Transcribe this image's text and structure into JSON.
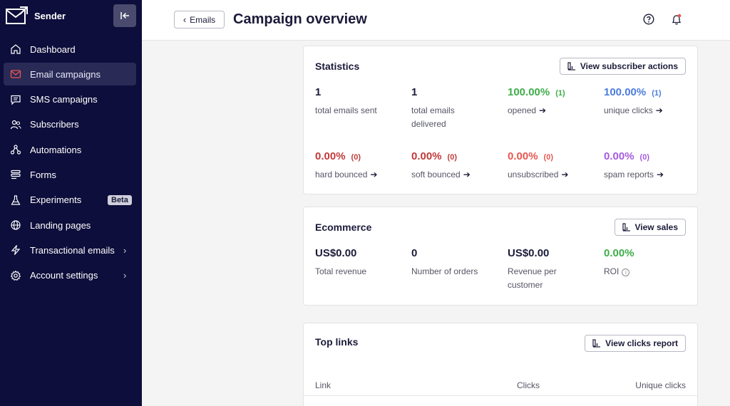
{
  "sidebar": {
    "brand": "Sender",
    "items": [
      {
        "label": "Dashboard",
        "icon": "home-icon",
        "active": false
      },
      {
        "label": "Email campaigns",
        "icon": "mail-icon",
        "active": true
      },
      {
        "label": "SMS campaigns",
        "icon": "message-icon",
        "active": false
      },
      {
        "label": "Subscribers",
        "icon": "users-icon",
        "active": false
      },
      {
        "label": "Automations",
        "icon": "automation-icon",
        "active": false
      },
      {
        "label": "Forms",
        "icon": "forms-icon",
        "active": false
      },
      {
        "label": "Experiments",
        "icon": "flask-icon",
        "active": false,
        "badge": "Beta"
      },
      {
        "label": "Landing pages",
        "icon": "globe-icon",
        "active": false
      },
      {
        "label": "Transactional emails",
        "icon": "lightning-icon",
        "active": false,
        "chevron": true
      },
      {
        "label": "Account settings",
        "icon": "gear-icon",
        "active": false,
        "chevron": true
      }
    ]
  },
  "header": {
    "back_label": "Emails",
    "title": "Campaign overview"
  },
  "statistics": {
    "title": "Statistics",
    "button": "View subscriber actions",
    "row1": [
      {
        "value": "1",
        "count": "",
        "label": "total emails sent",
        "arrow": false,
        "color": "#1b1b3a"
      },
      {
        "value": "1",
        "count": "",
        "label": "total emails delivered",
        "arrow": false,
        "color": "#1b1b3a"
      },
      {
        "value": "100.00%",
        "count": "(1)",
        "label": "opened",
        "arrow": true,
        "color": "#3fae4a"
      },
      {
        "value": "100.00%",
        "count": "(1)",
        "label": "unique clicks",
        "arrow": true,
        "color": "#4b7ddc"
      }
    ],
    "row2": [
      {
        "value": "0.00%",
        "count": "(0)",
        "label": "hard bounced",
        "arrow": true,
        "color": "#c23a3a"
      },
      {
        "value": "0.00%",
        "count": "(0)",
        "label": "soft bounced",
        "arrow": true,
        "color": "#c23a3a"
      },
      {
        "value": "0.00%",
        "count": "(0)",
        "label": "unsubscribed",
        "arrow": true,
        "color": "#e7574f"
      },
      {
        "value": "0.00%",
        "count": "(0)",
        "label": "spam reports",
        "arrow": true,
        "color": "#a65be0"
      }
    ]
  },
  "ecommerce": {
    "title": "Ecommerce",
    "button": "View sales",
    "items": [
      {
        "value": "US$0.00",
        "label": "Total revenue"
      },
      {
        "value": "0",
        "label": "Number of orders"
      },
      {
        "value": "US$0.00",
        "label": "Revenue per customer"
      },
      {
        "value": "0.00%",
        "label": "ROI",
        "color": "#3fae4a"
      }
    ]
  },
  "top_links": {
    "title": "Top links",
    "button": "View clicks report",
    "columns": [
      "Link",
      "Clicks",
      "Unique clicks"
    ]
  },
  "colors": {
    "sidebar_bg": "#0e0e3c",
    "accent_active": "#e7574f",
    "green": "#3fae4a",
    "blue": "#4b7ddc",
    "red": "#c23a3a",
    "purple": "#a65be0"
  }
}
